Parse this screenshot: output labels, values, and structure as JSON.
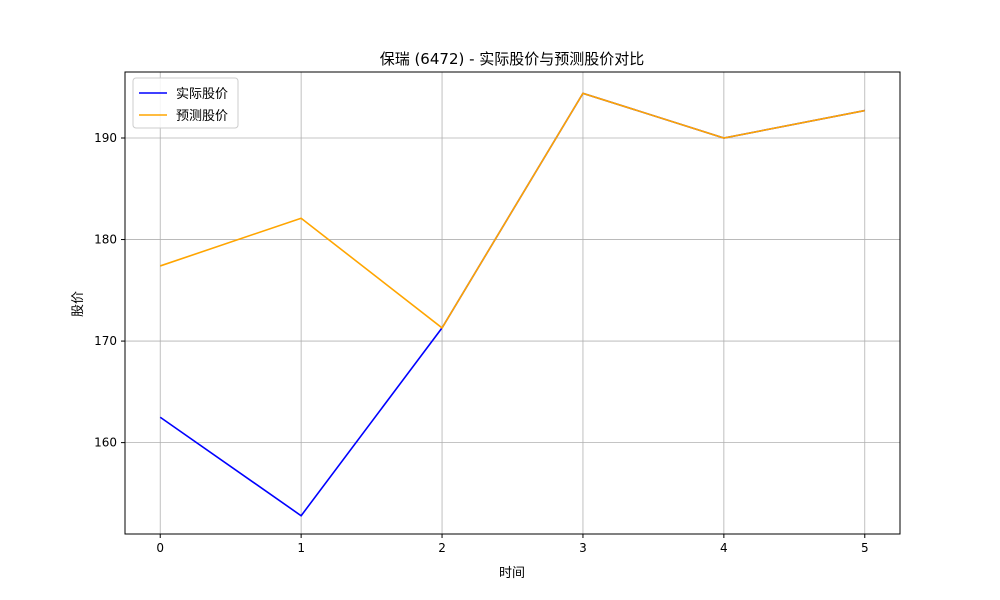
{
  "chart_data": {
    "type": "line",
    "title": "保瑞 (6472) - 实际股价与预测股价对比",
    "xlabel": "时间",
    "ylabel": "股价",
    "x": [
      0,
      1,
      2,
      3,
      4,
      5
    ],
    "x_ticks": [
      "0",
      "1",
      "2",
      "3",
      "4",
      "5"
    ],
    "y_ticks": [
      160,
      170,
      180,
      190
    ],
    "xlim": [
      -0.25,
      5.25
    ],
    "ylim": [
      151,
      196.5
    ],
    "grid": true,
    "legend_position": "top-left",
    "series": [
      {
        "name": "实际股价",
        "color": "#0000ff",
        "values": [
          162.5,
          152.8,
          171.3,
          194.4,
          190.0,
          192.7
        ]
      },
      {
        "name": "预测股价",
        "color": "#ffa500",
        "values": [
          177.4,
          182.1,
          171.3,
          194.4,
          190.0,
          192.7
        ]
      }
    ]
  }
}
